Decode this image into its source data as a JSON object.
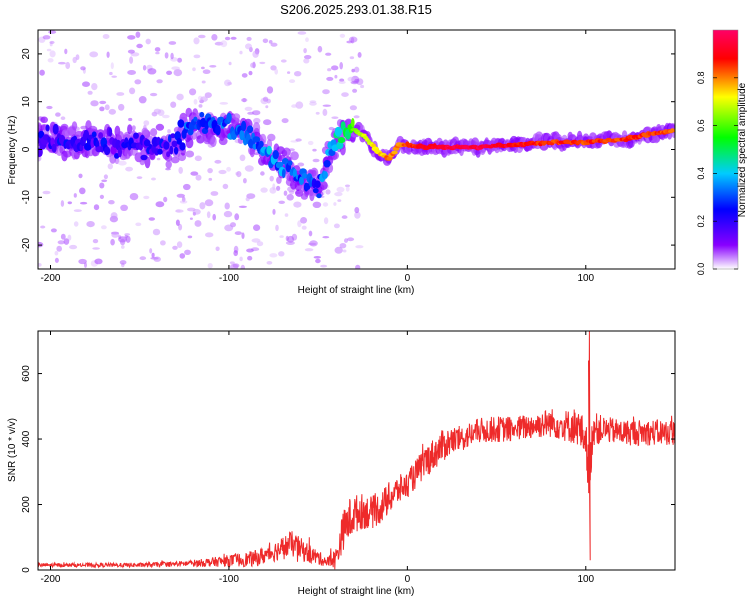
{
  "title": "S206.2025.293.01.38.R15",
  "chart_data": [
    {
      "type": "heatmap",
      "title": "S206.2025.293.01.38.R15",
      "xlabel": "Height of straight line (km)",
      "ylabel": "Frequency (Hz)",
      "xlim": [
        -207,
        150
      ],
      "ylim": [
        -25,
        25
      ],
      "xticks": [
        -200,
        -100,
        0,
        100
      ],
      "yticks": [
        -20,
        -10,
        0,
        10,
        20
      ],
      "colorbar": {
        "label": "Normalized spectral amplitude",
        "range": [
          0,
          1
        ],
        "ticks": [
          "0.0",
          "0.2",
          "0.4",
          "0.6",
          "0.8"
        ],
        "colors": [
          "#ffffff",
          "#8800ff",
          "#0000ff",
          "#00ccff",
          "#00ff00",
          "#ffff00",
          "#ff0000",
          "#ff0066"
        ]
      },
      "ridge": {
        "x": [
          -205,
          -190,
          -175,
          -160,
          -145,
          -130,
          -120,
          -110,
          -100,
          -90,
          -80,
          -70,
          -60,
          -50,
          -40,
          -35,
          -30,
          -25,
          -20,
          -15,
          -10,
          -5,
          0,
          10,
          20,
          40,
          60,
          80,
          100,
          120,
          140,
          150
        ],
        "freq": [
          2,
          1,
          2,
          1,
          0,
          1,
          6,
          5,
          5,
          3,
          0,
          -3,
          -6,
          -8,
          2,
          4,
          4,
          3,
          1,
          -1,
          -2,
          1,
          1,
          0.5,
          0.5,
          0.5,
          1,
          1.5,
          1.5,
          2,
          3.5,
          4
        ],
        "amplitude": [
          0.2,
          0.2,
          0.2,
          0.2,
          0.2,
          0.2,
          0.3,
          0.3,
          0.3,
          0.3,
          0.35,
          0.35,
          0.3,
          0.3,
          0.4,
          0.5,
          0.6,
          0.7,
          0.7,
          0.75,
          0.8,
          0.8,
          0.85,
          0.9,
          0.95,
          0.95,
          0.9,
          0.85,
          0.85,
          0.85,
          0.85,
          0.8
        ]
      }
    },
    {
      "type": "line",
      "title": "",
      "xlabel": "Height of straight line (km)",
      "ylabel": "SNR (10 * v/v)",
      "xlim": [
        -207,
        150
      ],
      "ylim": [
        0,
        730
      ],
      "xticks": [
        -200,
        -100,
        0,
        100
      ],
      "yticks": [
        0,
        200,
        400,
        600
      ],
      "color": "#ee2a2a",
      "series": [
        {
          "name": "SNR",
          "x": [
            -207,
            -190,
            -170,
            -150,
            -130,
            -115,
            -100,
            -85,
            -75,
            -65,
            -55,
            -45,
            -40,
            -36,
            -33,
            -30,
            -25,
            -20,
            -15,
            -10,
            -5,
            0,
            5,
            10,
            15,
            20,
            25,
            30,
            40,
            50,
            60,
            70,
            80,
            90,
            95,
            100,
            102,
            104,
            106,
            110,
            120,
            130,
            140,
            150
          ],
          "y": [
            15,
            15,
            15,
            15,
            18,
            22,
            28,
            35,
            55,
            80,
            50,
            25,
            35,
            120,
            150,
            170,
            180,
            175,
            190,
            220,
            245,
            260,
            295,
            330,
            355,
            380,
            395,
            400,
            425,
            430,
            430,
            440,
            450,
            440,
            440,
            400,
            270,
            440,
            430,
            430,
            420,
            420,
            420,
            420
          ],
          "noise": [
            6,
            6,
            6,
            7,
            8,
            12,
            18,
            25,
            30,
            40,
            30,
            15,
            35,
            60,
            70,
            60,
            55,
            50,
            50,
            50,
            45,
            40,
            45,
            50,
            50,
            50,
            45,
            40,
            40,
            40,
            40,
            40,
            45,
            50,
            60,
            60,
            80,
            60,
            50,
            40,
            40,
            40,
            40,
            40
          ]
        }
      ],
      "spikes": [
        {
          "x": 102,
          "y": 730
        },
        {
          "x": 102.5,
          "y": 30
        },
        {
          "x": 101.5,
          "y": 640
        }
      ]
    }
  ]
}
